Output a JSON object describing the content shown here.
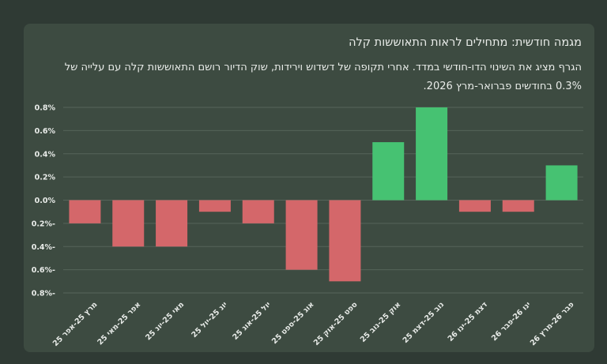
{
  "card": {
    "title": "מגמה חודשית: מתחילים לראות התאוששות קלה",
    "subtitle": "הגרף מציג את השינוי הדו-חודשי במדד. אחרי תקופה של דשדוש וירידות, שוק הדיור רושם התאוששות קלה עם עלייה של 0.3% בחודשים פברואר-מרץ 2026."
  },
  "colors": {
    "positive": "#46c272",
    "negative": "#d4676a",
    "grid": "#56645a",
    "text": "#e9ece9"
  },
  "chart_data": {
    "type": "bar",
    "categories": [
      "מרץ 25-אפר 25",
      "אפר 25-מאי 25",
      "מאי 25-יונ 25",
      "יונ 25-יול 25",
      "יול 25-אוג 25",
      "אוג 25-ספט 25",
      "ספט 25-אוק 25",
      "אוק 25-נוב 25",
      "נוב 25-דצמ 25",
      "דצמ 25-ינו 26",
      "ינו 26-פבר 26",
      "פבר 26-מרץ 26"
    ],
    "values": [
      -0.2,
      -0.4,
      -0.4,
      -0.1,
      -0.2,
      -0.6,
      -0.7,
      0.5,
      0.8,
      -0.1,
      -0.1,
      0.3
    ],
    "yticks": [
      0.8,
      0.6,
      0.4,
      0.2,
      0.0,
      -0.2,
      -0.4,
      -0.6,
      -0.8
    ],
    "ytick_labels": [
      "0.8%",
      "0.6%",
      "0.4%",
      "0.2%",
      "0.0%",
      "0.2%-",
      "0.4%-",
      "0.6%-",
      "0.8%-"
    ],
    "ylim": [
      -0.8,
      0.8
    ],
    "grid": true,
    "xlabel": "",
    "ylabel": ""
  }
}
